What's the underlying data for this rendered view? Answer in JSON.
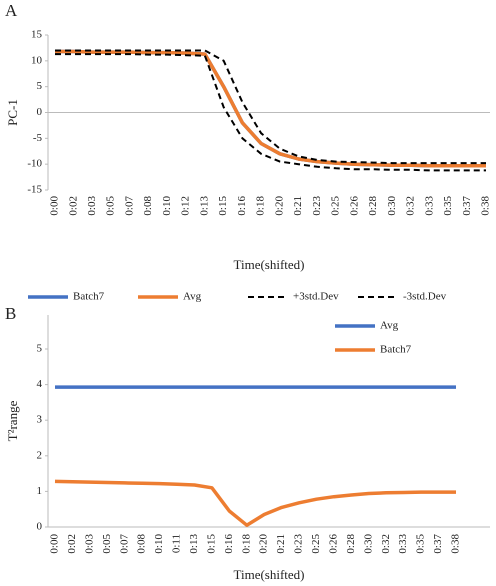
{
  "chart_data": [
    {
      "type": "line",
      "panel_label": "A",
      "y_label": "PC-1",
      "x_label": "Time(shifted)",
      "categories": [
        "0:00",
        "0:02",
        "0:03",
        "0:05",
        "0:07",
        "0:08",
        "0:10",
        "0:12",
        "0:13",
        "0:15",
        "0:16",
        "0:18",
        "0:20",
        "0:21",
        "0:23",
        "0:25",
        "0:26",
        "0:28",
        "0:30",
        "0:32",
        "0:33",
        "0:35",
        "0:37",
        "0:38"
      ],
      "ylim": [
        -15,
        15
      ],
      "yticks": [
        -15,
        -10,
        -5,
        0,
        5,
        10,
        15
      ],
      "grid": false,
      "legend": "bottom",
      "series": [
        {
          "name": "Batch7",
          "color": "#4472c4",
          "dash": false,
          "values": [
            11.8,
            11.8,
            11.7,
            11.7,
            11.7,
            11.6,
            11.6,
            11.5,
            11.3,
            5,
            -2,
            -6,
            -8,
            -9,
            -9.5,
            -9.8,
            -10,
            -10.1,
            -10.2,
            -10.2,
            -10.3,
            -10.3,
            -10.3,
            -10.3
          ]
        },
        {
          "name": "Avg",
          "color": "#ed7d31",
          "dash": false,
          "values": [
            11.8,
            11.8,
            11.7,
            11.7,
            11.7,
            11.6,
            11.6,
            11.5,
            11.3,
            5,
            -2,
            -6,
            -8,
            -9,
            -9.5,
            -9.8,
            -10,
            -10.1,
            -10.2,
            -10.2,
            -10.3,
            -10.3,
            -10.3,
            -10.3
          ]
        },
        {
          "name": "+3std.Dev",
          "color": "#000000",
          "dash": true,
          "values": [
            12,
            12,
            12,
            12,
            12,
            12,
            12,
            12,
            12,
            10,
            2,
            -4,
            -7,
            -8.5,
            -9.2,
            -9.5,
            -9.6,
            -9.7,
            -9.8,
            -9.8,
            -9.8,
            -9.8,
            -9.8,
            -9.8
          ]
        },
        {
          "name": "-3std.Dev",
          "color": "#000000",
          "dash": true,
          "values": [
            11.3,
            11.3,
            11.3,
            11.3,
            11.3,
            11.2,
            11.2,
            11.1,
            11,
            1,
            -5,
            -8,
            -9.5,
            -10,
            -10.5,
            -10.8,
            -11,
            -11,
            -11.1,
            -11.1,
            -11.2,
            -11.2,
            -11.2,
            -11.2
          ]
        }
      ]
    },
    {
      "type": "line",
      "panel_label": "B",
      "y_label": "T²range",
      "x_label": "Time(shifted)",
      "categories": [
        "0:00",
        "0:02",
        "0:03",
        "0:05",
        "0:07",
        "0:08",
        "0:10",
        "0:11",
        "0:13",
        "0:15",
        "0:16",
        "0:18",
        "0:20",
        "0:21",
        "0:23",
        "0:25",
        "0:26",
        "0:28",
        "0:30",
        "0:32",
        "0:33",
        "0:35",
        "0:37",
        "0:38"
      ],
      "ylim": [
        0,
        5
      ],
      "yticks": [
        0,
        1,
        2,
        3,
        4,
        5
      ],
      "grid": false,
      "legend": "top-right",
      "series": [
        {
          "name": "Avg",
          "color": "#4472c4",
          "dash": false,
          "values": [
            3.93,
            3.93,
            3.93,
            3.93,
            3.93,
            3.93,
            3.93,
            3.93,
            3.93,
            3.93,
            3.93,
            3.93,
            3.93,
            3.93,
            3.93,
            3.93,
            3.93,
            3.93,
            3.93,
            3.93,
            3.93,
            3.93,
            3.93,
            3.93
          ]
        },
        {
          "name": "Batch7",
          "color": "#ed7d31",
          "dash": false,
          "values": [
            1.28,
            1.27,
            1.26,
            1.25,
            1.24,
            1.23,
            1.22,
            1.2,
            1.18,
            1.1,
            0.45,
            0.05,
            0.35,
            0.55,
            0.68,
            0.78,
            0.85,
            0.9,
            0.94,
            0.96,
            0.97,
            0.98,
            0.98,
            0.98
          ]
        }
      ]
    }
  ]
}
